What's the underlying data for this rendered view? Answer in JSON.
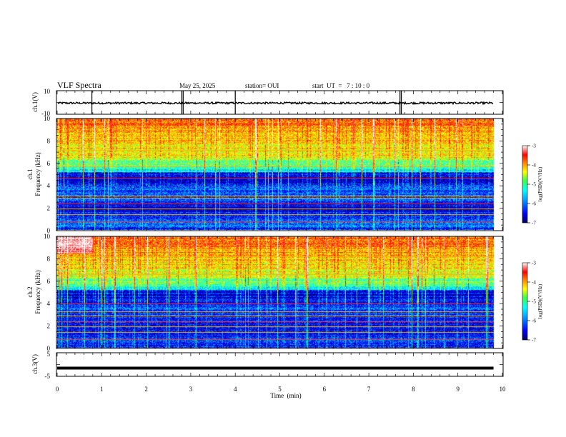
{
  "header": {
    "title": "VLF Spectra",
    "date": "May 25, 2025",
    "station": "station= OUI",
    "start": "start  UT  =   7 : 10 : 0"
  },
  "colors": {
    "colormap": [
      "#000080",
      "#0000ff",
      "#00a0ff",
      "#00ffff",
      "#60ff60",
      "#ffff00",
      "#ff8000",
      "#ff0000",
      "#ff9090",
      "#ffffff"
    ],
    "waveform": "#000000",
    "ch3_trace": "#000000"
  },
  "chart_data": [
    {
      "type": "line",
      "ylabel": "ch.1(V)",
      "ylim": [
        -10,
        10
      ],
      "ytick_labels": [
        "10",
        "-10"
      ],
      "xlim": [
        0,
        10
      ],
      "baseline": -0.5,
      "spikes_min": [
        0.78,
        2.8,
        2.83,
        4.0,
        7.7,
        7.73
      ],
      "grid": false
    },
    {
      "type": "heatmap",
      "ylabel": "ch.1\nFrequency (kHz)",
      "xlim": [
        0,
        10
      ],
      "ylim": [
        0,
        10
      ],
      "data_end_min": 9.8,
      "ytick_labels": [
        "0",
        "2",
        "4",
        "6",
        "8",
        "10"
      ],
      "colorbar": {
        "label": "log(PSD)(V²/Hz)",
        "range": [
          -7,
          -3
        ],
        "tick_labels": [
          "-3",
          "-4",
          "-5",
          "-6",
          "-7"
        ]
      },
      "band_lines_khz": [
        0.8,
        1.4,
        1.9,
        2.4,
        2.9,
        3.1,
        4.7,
        5.8,
        7.2
      ]
    },
    {
      "type": "heatmap",
      "ylabel": "ch.2\nFrequency (kHz)",
      "xlim": [
        0,
        10
      ],
      "ylim": [
        0,
        10
      ],
      "data_end_min": 9.8,
      "ytick_labels": [
        "0",
        "2",
        "4",
        "6",
        "8",
        "10"
      ],
      "colorbar": {
        "label": "log(PSD)(V²/Hz)",
        "range": [
          -7,
          -3
        ],
        "tick_labels": [
          "-3",
          "-4",
          "-5",
          "-6",
          "-7"
        ]
      },
      "band_lines_khz": [
        0.8,
        1.4,
        1.9,
        2.4,
        2.9,
        3.3,
        4.0,
        6.6,
        8.2
      ]
    },
    {
      "type": "line",
      "ylabel": "ch.3(V)",
      "ylim": [
        -5,
        5
      ],
      "ytick_labels": [
        "5",
        "-5"
      ],
      "xlim": [
        0,
        10
      ],
      "value": -1.5,
      "xlabel": "Time  (min)",
      "xtick_labels": [
        "0",
        "1",
        "2",
        "3",
        "4",
        "5",
        "6",
        "7",
        "8",
        "9",
        "10"
      ]
    }
  ]
}
